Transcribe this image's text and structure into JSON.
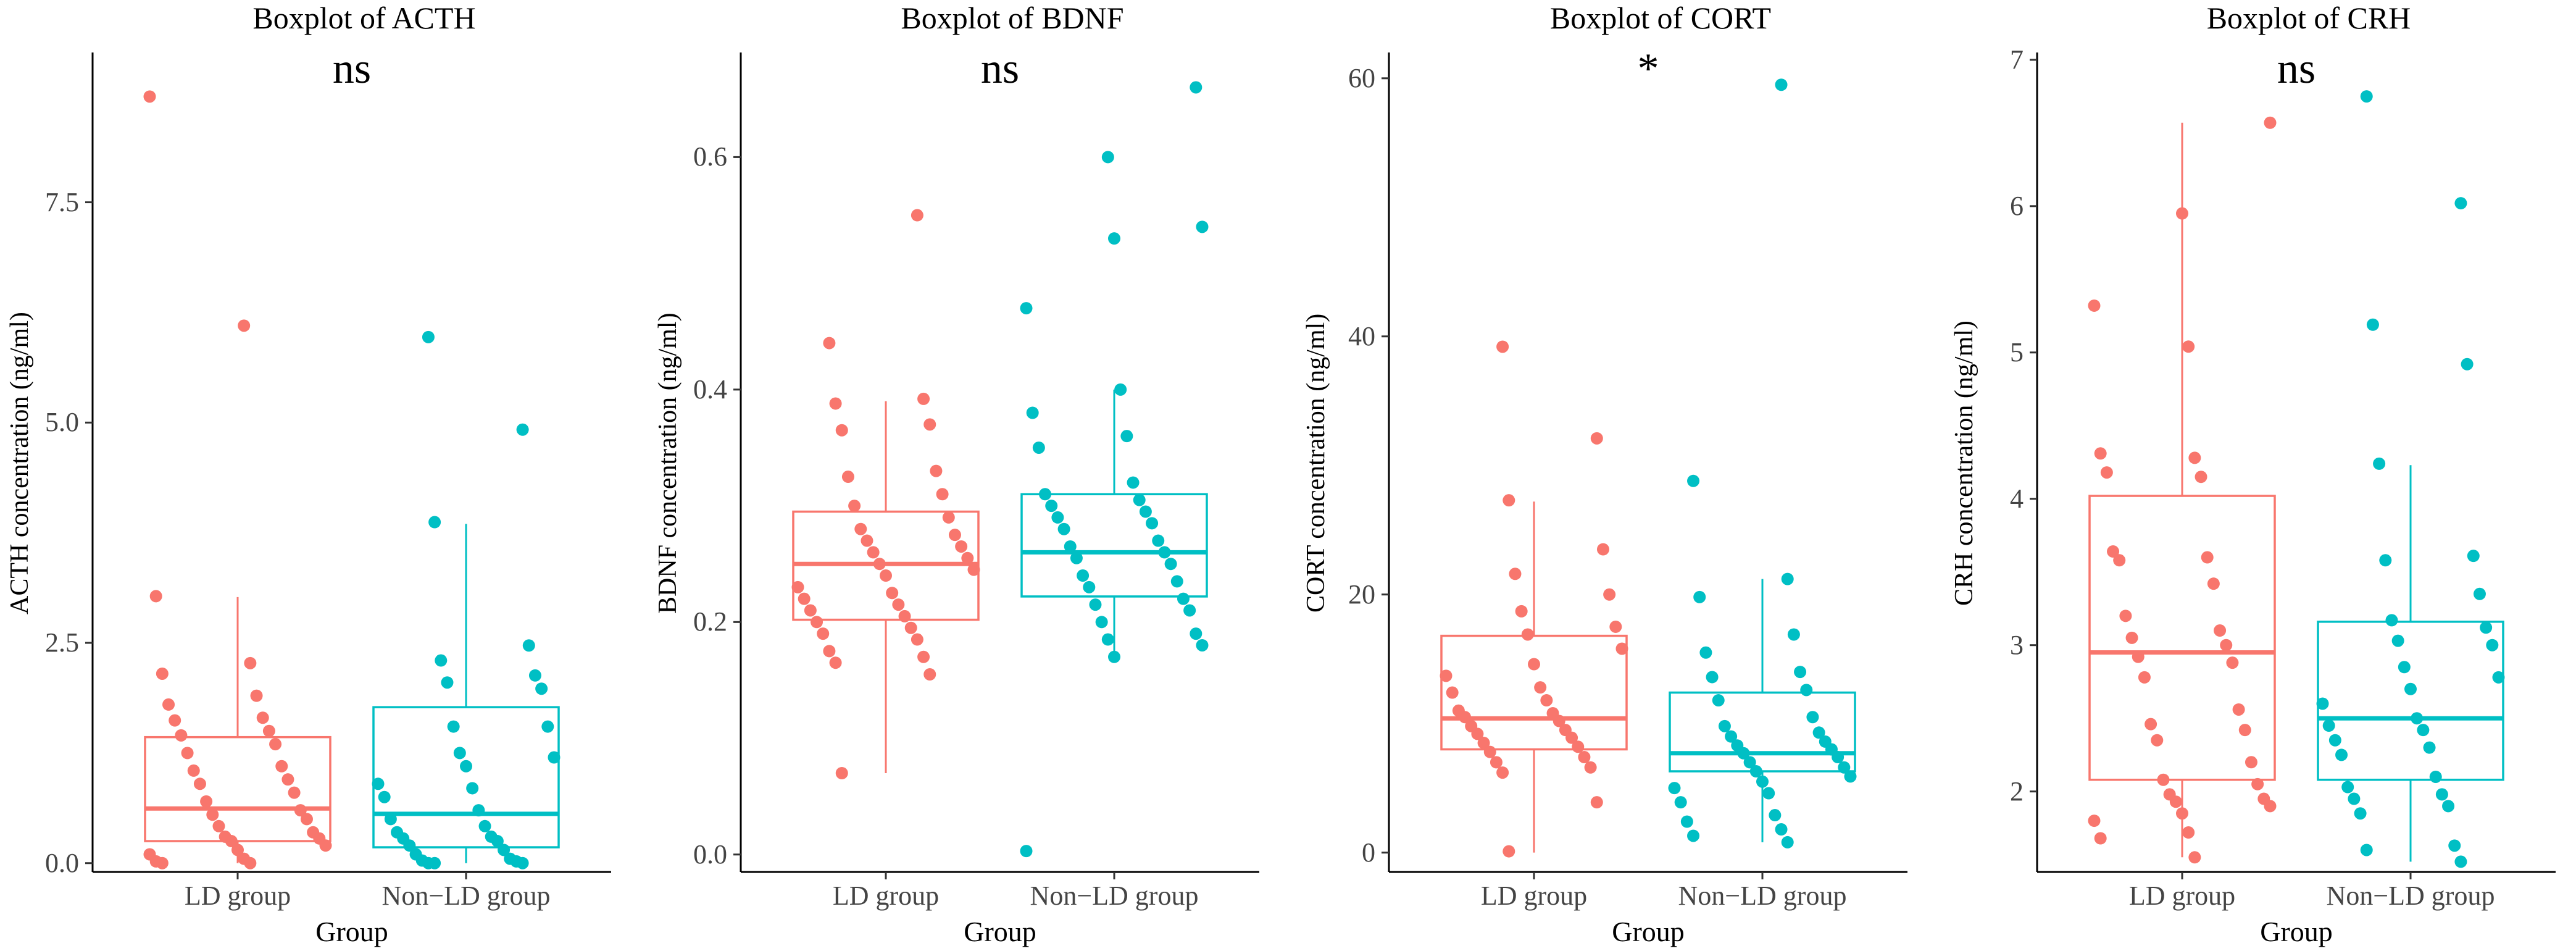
{
  "chart_data": [
    {
      "type": "boxplot",
      "title": "Boxplot of ACTH",
      "xlabel": "Group",
      "ylabel": "ACTH concentration (ng/ml)",
      "significance": "ns",
      "categories": [
        "LD group",
        "Non−LD group"
      ],
      "colors": [
        "#F8766D",
        "#00BFC4"
      ],
      "ylim": [
        -0.1,
        9.2
      ],
      "yticks": [
        0.0,
        2.5,
        5.0,
        7.5
      ],
      "ytick_labels": [
        "0.0",
        "2.5",
        "5.0",
        "7.5"
      ],
      "boxes": [
        {
          "group": "LD group",
          "lower_whisker": 0.0,
          "q1": 0.25,
          "median": 0.62,
          "q3": 1.43,
          "upper_whisker": 3.02,
          "points": [
            8.7,
            6.1,
            3.03,
            2.27,
            2.15,
            1.9,
            1.8,
            1.65,
            1.62,
            1.5,
            1.45,
            1.35,
            1.25,
            1.1,
            1.05,
            0.95,
            0.9,
            0.8,
            0.7,
            0.6,
            0.55,
            0.5,
            0.42,
            0.35,
            0.3,
            0.28,
            0.25,
            0.2,
            0.15,
            0.1,
            0.05,
            0.02,
            0.0,
            0.0
          ]
        },
        {
          "group": "Non−LD group",
          "lower_whisker": 0.0,
          "q1": 0.18,
          "median": 0.56,
          "q3": 1.77,
          "upper_whisker": 3.85,
          "points": [
            5.97,
            4.92,
            3.87,
            2.47,
            2.3,
            2.13,
            2.05,
            1.98,
            1.55,
            1.55,
            1.25,
            1.2,
            1.1,
            0.9,
            0.85,
            0.75,
            0.6,
            0.5,
            0.42,
            0.35,
            0.3,
            0.28,
            0.25,
            0.2,
            0.15,
            0.1,
            0.05,
            0.03,
            0.02,
            0.0,
            0.0,
            0.0
          ]
        }
      ]
    },
    {
      "type": "boxplot",
      "title": "Boxplot of BDNF",
      "xlabel": "Group",
      "ylabel": "BDNF concentration (ng/ml)",
      "significance": "ns",
      "categories": [
        "LD group",
        "Non−LD group"
      ],
      "colors": [
        "#F8766D",
        "#00BFC4"
      ],
      "ylim": [
        -0.015,
        0.69
      ],
      "yticks": [
        0.0,
        0.2,
        0.4,
        0.6
      ],
      "ytick_labels": [
        "0.0",
        "0.2",
        "0.4",
        "0.6"
      ],
      "boxes": [
        {
          "group": "LD group",
          "lower_whisker": 0.07,
          "q1": 0.202,
          "median": 0.25,
          "q3": 0.295,
          "upper_whisker": 0.39,
          "points": [
            0.55,
            0.44,
            0.392,
            0.388,
            0.37,
            0.365,
            0.33,
            0.325,
            0.31,
            0.3,
            0.29,
            0.28,
            0.275,
            0.27,
            0.265,
            0.26,
            0.255,
            0.25,
            0.245,
            0.24,
            0.23,
            0.225,
            0.22,
            0.215,
            0.21,
            0.205,
            0.2,
            0.195,
            0.19,
            0.185,
            0.175,
            0.17,
            0.165,
            0.155,
            0.07
          ]
        },
        {
          "group": "Non−LD group",
          "lower_whisker": 0.17,
          "q1": 0.222,
          "median": 0.26,
          "q3": 0.31,
          "upper_whisker": 0.4,
          "points": [
            0.66,
            0.6,
            0.54,
            0.53,
            0.47,
            0.4,
            0.38,
            0.36,
            0.35,
            0.32,
            0.31,
            0.305,
            0.3,
            0.295,
            0.29,
            0.285,
            0.28,
            0.27,
            0.265,
            0.26,
            0.255,
            0.25,
            0.24,
            0.235,
            0.23,
            0.22,
            0.215,
            0.21,
            0.2,
            0.19,
            0.185,
            0.18,
            0.17,
            0.003
          ]
        }
      ]
    },
    {
      "type": "boxplot",
      "title": "Boxplot of CORT",
      "xlabel": "Group",
      "ylabel": "CORT concentration (ng/ml)",
      "significance": "*",
      "categories": [
        "LD group",
        "Non−LD group"
      ],
      "colors": [
        "#F8766D",
        "#00BFC4"
      ],
      "ylim": [
        -1.5,
        62
      ],
      "yticks": [
        0,
        20,
        40,
        60
      ],
      "ytick_labels": [
        "0",
        "20",
        "40",
        "60"
      ],
      "boxes": [
        {
          "group": "LD group",
          "lower_whisker": 0.0,
          "q1": 8.0,
          "median": 10.4,
          "q3": 16.8,
          "upper_whisker": 27.2,
          "points": [
            39.2,
            32.1,
            27.3,
            23.5,
            21.6,
            20.0,
            18.7,
            17.5,
            16.9,
            15.8,
            14.6,
            13.7,
            12.8,
            12.4,
            11.8,
            11.0,
            10.8,
            10.5,
            10.2,
            9.8,
            9.5,
            9.2,
            8.9,
            8.5,
            8.2,
            7.8,
            7.4,
            7.0,
            6.6,
            6.2,
            3.9,
            0.1
          ]
        },
        {
          "group": "Non−LD group",
          "lower_whisker": 0.8,
          "q1": 6.3,
          "median": 7.7,
          "q3": 12.4,
          "upper_whisker": 21.2,
          "points": [
            59.5,
            28.8,
            21.2,
            19.8,
            16.9,
            15.5,
            14.0,
            13.6,
            12.6,
            11.8,
            10.5,
            9.8,
            9.3,
            9.0,
            8.6,
            8.3,
            8.0,
            7.7,
            7.4,
            7.0,
            6.6,
            6.3,
            5.9,
            5.5,
            5.0,
            4.6,
            3.9,
            2.9,
            2.4,
            1.8,
            1.3,
            0.8
          ]
        }
      ]
    },
    {
      "type": "boxplot",
      "title": "Boxplot of CRH",
      "xlabel": "Group",
      "ylabel": "CRH concentration (ng/ml)",
      "significance": "ns",
      "categories": [
        "LD group",
        "Non−LD group"
      ],
      "colors": [
        "#F8766D",
        "#00BFC4"
      ],
      "ylim": [
        1.45,
        7.05
      ],
      "yticks": [
        2,
        3,
        4,
        5,
        6,
        7
      ],
      "ytick_labels": [
        "2",
        "3",
        "4",
        "5",
        "6",
        "7"
      ],
      "boxes": [
        {
          "group": "LD group",
          "lower_whisker": 1.55,
          "q1": 2.08,
          "median": 2.95,
          "q3": 4.02,
          "upper_whisker": 6.57,
          "points": [
            6.57,
            5.95,
            5.32,
            5.04,
            4.31,
            4.28,
            4.18,
            4.15,
            3.64,
            3.6,
            3.58,
            3.42,
            3.2,
            3.1,
            3.05,
            3.0,
            2.92,
            2.88,
            2.78,
            2.56,
            2.46,
            2.42,
            2.35,
            2.2,
            2.08,
            2.05,
            1.98,
            1.95,
            1.93,
            1.9,
            1.85,
            1.8,
            1.72,
            1.68,
            1.55
          ]
        },
        {
          "group": "Non−LD group",
          "lower_whisker": 1.52,
          "q1": 2.08,
          "median": 2.5,
          "q3": 3.16,
          "upper_whisker": 4.23,
          "points": [
            6.75,
            6.02,
            5.19,
            4.92,
            4.24,
            3.61,
            3.58,
            3.35,
            3.17,
            3.12,
            3.03,
            3.0,
            2.85,
            2.78,
            2.7,
            2.6,
            2.5,
            2.45,
            2.42,
            2.35,
            2.3,
            2.25,
            2.1,
            2.03,
            1.98,
            1.95,
            1.9,
            1.85,
            1.63,
            1.6,
            1.52
          ]
        }
      ]
    }
  ]
}
